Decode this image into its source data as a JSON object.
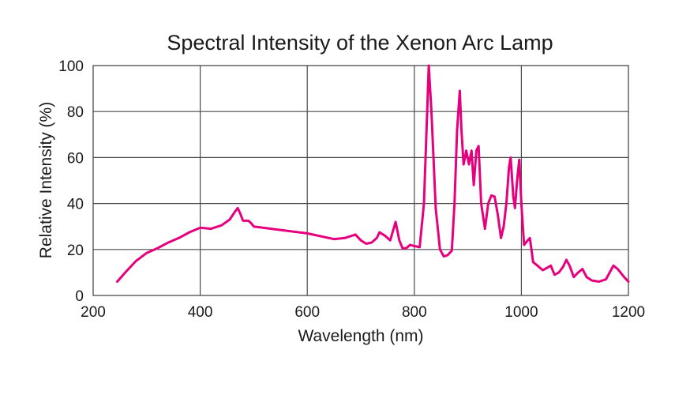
{
  "chart_data": {
    "type": "line",
    "title": "Spectral Intensity of the Xenon Arc Lamp",
    "xlabel": "Wavelength (nm)",
    "ylabel": "Relative Intensity (%)",
    "xlim": [
      200,
      1200
    ],
    "ylim": [
      0,
      100
    ],
    "xticks": [
      200,
      400,
      600,
      800,
      1000,
      1200
    ],
    "yticks": [
      0,
      20,
      40,
      60,
      80,
      100
    ],
    "grid": true,
    "line_color": "#e6007e",
    "series": [
      {
        "points": [
          [
            245,
            6
          ],
          [
            260,
            10
          ],
          [
            280,
            15
          ],
          [
            300,
            18.5
          ],
          [
            320,
            20.5
          ],
          [
            340,
            23
          ],
          [
            360,
            25
          ],
          [
            380,
            27.5
          ],
          [
            400,
            29.5
          ],
          [
            420,
            29
          ],
          [
            440,
            30.5
          ],
          [
            455,
            33
          ],
          [
            465,
            36.5
          ],
          [
            470,
            38
          ],
          [
            475,
            35.5
          ],
          [
            480,
            32.5
          ],
          [
            490,
            32.5
          ],
          [
            495,
            31.5
          ],
          [
            500,
            30
          ],
          [
            550,
            28.5
          ],
          [
            600,
            27
          ],
          [
            650,
            24.5
          ],
          [
            670,
            25
          ],
          [
            690,
            26.5
          ],
          [
            700,
            24
          ],
          [
            710,
            22.5
          ],
          [
            720,
            23
          ],
          [
            730,
            25
          ],
          [
            735,
            27.5
          ],
          [
            745,
            26
          ],
          [
            755,
            24
          ],
          [
            765,
            32
          ],
          [
            772,
            24
          ],
          [
            778,
            20.5
          ],
          [
            785,
            20.5
          ],
          [
            792,
            22
          ],
          [
            800,
            21.5
          ],
          [
            810,
            21
          ],
          [
            818,
            40
          ],
          [
            824,
            80
          ],
          [
            827,
            100
          ],
          [
            832,
            80
          ],
          [
            840,
            38
          ],
          [
            848,
            20
          ],
          [
            855,
            17
          ],
          [
            862,
            17.5
          ],
          [
            870,
            19.5
          ],
          [
            875,
            40
          ],
          [
            880,
            72
          ],
          [
            885,
            89
          ],
          [
            888,
            72
          ],
          [
            892,
            57
          ],
          [
            897,
            63
          ],
          [
            902,
            57
          ],
          [
            907,
            63
          ],
          [
            911,
            48
          ],
          [
            916,
            63
          ],
          [
            920,
            65
          ],
          [
            925,
            40
          ],
          [
            932,
            29
          ],
          [
            938,
            40
          ],
          [
            944,
            43.5
          ],
          [
            950,
            43
          ],
          [
            956,
            35
          ],
          [
            962,
            25
          ],
          [
            967,
            30
          ],
          [
            972,
            40
          ],
          [
            977,
            56
          ],
          [
            980,
            60
          ],
          [
            985,
            43
          ],
          [
            988,
            38
          ],
          [
            992,
            50
          ],
          [
            996,
            59
          ],
          [
            1000,
            40
          ],
          [
            1005,
            22
          ],
          [
            1012,
            24
          ],
          [
            1016,
            25
          ],
          [
            1022,
            14.5
          ],
          [
            1030,
            13
          ],
          [
            1040,
            11
          ],
          [
            1048,
            12
          ],
          [
            1055,
            13
          ],
          [
            1062,
            9
          ],
          [
            1070,
            10
          ],
          [
            1078,
            12.5
          ],
          [
            1084,
            15.5
          ],
          [
            1090,
            13
          ],
          [
            1098,
            8
          ],
          [
            1106,
            10
          ],
          [
            1114,
            11.5
          ],
          [
            1122,
            8
          ],
          [
            1132,
            6.5
          ],
          [
            1145,
            6
          ],
          [
            1158,
            7
          ],
          [
            1165,
            10
          ],
          [
            1172,
            13
          ],
          [
            1180,
            11.5
          ],
          [
            1192,
            8
          ],
          [
            1200,
            6
          ]
        ]
      }
    ]
  }
}
